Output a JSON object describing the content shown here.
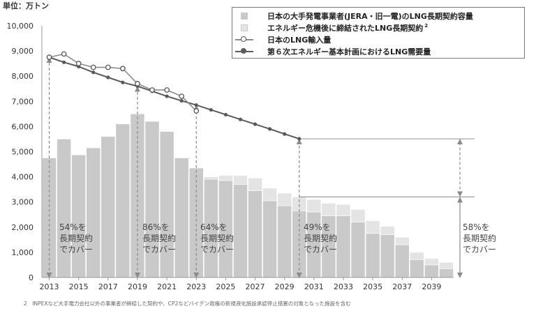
{
  "unit_label": "単位：万トン",
  "footnote": "2　INPEXなど大手電力会社以外の事業者が締結した契約や、CP2などバイデン政権の新規液化施設承認停止措置の対象となった施設を含む",
  "legend": {
    "items": [
      {
        "label": "日本の大手発電事業者(JERA・旧一電)のLNG長期契約容量"
      },
      {
        "label": "エネルギー危機後に締結されたLNG長期契約",
        "sup": "2"
      },
      {
        "label": "日本のLNG輸入量"
      },
      {
        "label": "第６次エネルギー基本計画におけるLNG需要量"
      }
    ]
  },
  "coverage_labels": [
    {
      "lines": [
        "54%を",
        "長期契約",
        "でカバー"
      ]
    },
    {
      "lines": [
        "86%を",
        "長期契約",
        "でカバー"
      ]
    },
    {
      "lines": [
        "64%を",
        "長期契約",
        "でカバー"
      ]
    },
    {
      "lines": [
        "49%を",
        "長期契約",
        "でカバー"
      ]
    },
    {
      "lines": [
        "58%を",
        "長期契約",
        "でカバー"
      ]
    }
  ],
  "colors": {
    "bar_major": "#c9c9c9",
    "bar_new": "#e4e4e4",
    "import_line": "#8c8c8c",
    "demand_line": "#5a5a5a",
    "arrow": "#8a8a8a",
    "axis_text": "#333333"
  },
  "chart_data": {
    "type": "bar",
    "x": [
      2013,
      2014,
      2015,
      2016,
      2017,
      2018,
      2019,
      2020,
      2021,
      2022,
      2023,
      2024,
      2025,
      2026,
      2027,
      2028,
      2029,
      2030,
      2031,
      2032,
      2033,
      2034,
      2035,
      2036,
      2037,
      2038,
      2039,
      2040
    ],
    "x_tick_labels": [
      "2013",
      "2015",
      "2017",
      "2019",
      "2021",
      "2023",
      "2025",
      "2027",
      "2029",
      "2031",
      "2033",
      "2035",
      "2037",
      "2039"
    ],
    "ylim": [
      0,
      10000
    ],
    "y_ticks": [
      "0",
      "1,000",
      "2,000",
      "3,000",
      "4,000",
      "5,000",
      "6,000",
      "7,000",
      "8,000",
      "9,000",
      "10,000"
    ],
    "series": [
      {
        "name": "日本の大手発電事業者(JERA・旧一電)のLNG長期契約容量",
        "values": [
          4750,
          5500,
          4870,
          5150,
          5600,
          6100,
          6500,
          6200,
          5800,
          4750,
          4350,
          3900,
          3850,
          3700,
          3450,
          3050,
          2850,
          2650,
          2600,
          2450,
          2450,
          2200,
          1750,
          1700,
          1300,
          700,
          500,
          350
        ]
      },
      {
        "name": "エネルギー危機後に締結されたLNG長期契約",
        "values": [
          0,
          0,
          0,
          0,
          0,
          0,
          0,
          0,
          0,
          0,
          0,
          100,
          200,
          350,
          500,
          500,
          500,
          550,
          500,
          500,
          450,
          500,
          500,
          330,
          300,
          300,
          250,
          250
        ]
      },
      {
        "name": "日本のLNG輸入量",
        "x": [
          2013,
          2014,
          2015,
          2016,
          2017,
          2018,
          2019,
          2020,
          2021,
          2022,
          2023
        ],
        "values": [
          8750,
          8880,
          8500,
          8350,
          8350,
          8300,
          7700,
          7450,
          7450,
          7200,
          6620
        ]
      },
      {
        "name": "第６次エネルギー基本計画におけるLNG需要量",
        "x": [
          2013,
          2014,
          2015,
          2016,
          2017,
          2018,
          2019,
          2020,
          2021,
          2022,
          2023,
          2024,
          2025,
          2026,
          2027,
          2028,
          2029,
          2030
        ],
        "values": [
          8750,
          8550,
          8380,
          8150,
          7950,
          7750,
          7600,
          7400,
          7200,
          7020,
          6850,
          6660,
          6470,
          6280,
          6090,
          5900,
          5700,
          5510
        ]
      }
    ],
    "annotations": [
      "54%を長期契約でカバー",
      "86%を長期契約でカバー",
      "64%を長期契約でカバー",
      "49%を長期契約でカバー",
      "58%を長期契約でカバー"
    ],
    "grid": false,
    "legend_position": "top-right"
  }
}
